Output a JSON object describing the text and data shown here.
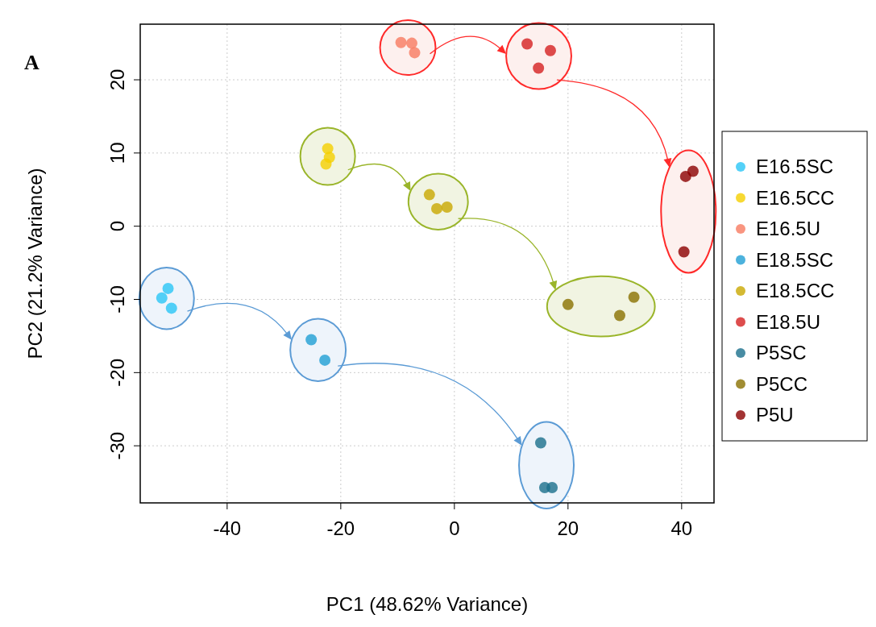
{
  "chart_data": {
    "type": "scatter",
    "xlabel": "PC1 (48.62% Variance)",
    "ylabel": "PC2 (21.2% Variance)",
    "annotations": [
      "A"
    ],
    "xlim": [
      -55.3,
      45.7
    ],
    "ylim": [
      -37.8,
      27.6
    ],
    "xticks": [
      -40,
      -20,
      0,
      20,
      40
    ],
    "yticks": [
      -30,
      -20,
      -10,
      0,
      10,
      20
    ],
    "grid": true,
    "legend": "right",
    "marker": "circle",
    "series": [
      {
        "name": "E16.5SC",
        "color": "#29c5f6",
        "x": [
          -51.5,
          -50.4,
          -49.8
        ],
        "values": [
          -9.8,
          -8.5,
          -11.2
        ]
      },
      {
        "name": "E16.5CC",
        "color": "#f5d000",
        "x": [
          -22.3,
          -22.0,
          -22.6
        ],
        "values": [
          10.6,
          9.4,
          8.5
        ]
      },
      {
        "name": "E16.5U",
        "color": "#f87a60",
        "x": [
          -9.4,
          -7.5,
          -7.0
        ],
        "values": [
          25.1,
          25.0,
          23.7
        ]
      },
      {
        "name": "E18.5SC",
        "color": "#1f9fd4",
        "x": [
          -25.2,
          -22.8
        ],
        "values": [
          -15.5,
          -18.3
        ]
      },
      {
        "name": "E18.5CC",
        "color": "#c9a800",
        "x": [
          -4.4,
          -3.1,
          -1.3
        ],
        "values": [
          4.3,
          2.4,
          2.6
        ]
      },
      {
        "name": "E18.5U",
        "color": "#d42020",
        "x": [
          12.8,
          16.9,
          14.8
        ],
        "values": [
          24.9,
          24.0,
          21.6
        ]
      },
      {
        "name": "P5SC",
        "color": "#1a6f8c",
        "x": [
          15.2,
          15.9,
          17.2
        ],
        "values": [
          -29.6,
          -35.7,
          -35.7
        ]
      },
      {
        "name": "P5CC",
        "color": "#8a7000",
        "x": [
          20.0,
          29.1,
          31.6
        ],
        "values": [
          -10.7,
          -12.2,
          -9.7
        ]
      },
      {
        "name": "P5U",
        "color": "#8b0000",
        "x": [
          40.7,
          42.0,
          40.4
        ],
        "values": [
          6.8,
          7.5,
          -3.5
        ]
      }
    ]
  }
}
